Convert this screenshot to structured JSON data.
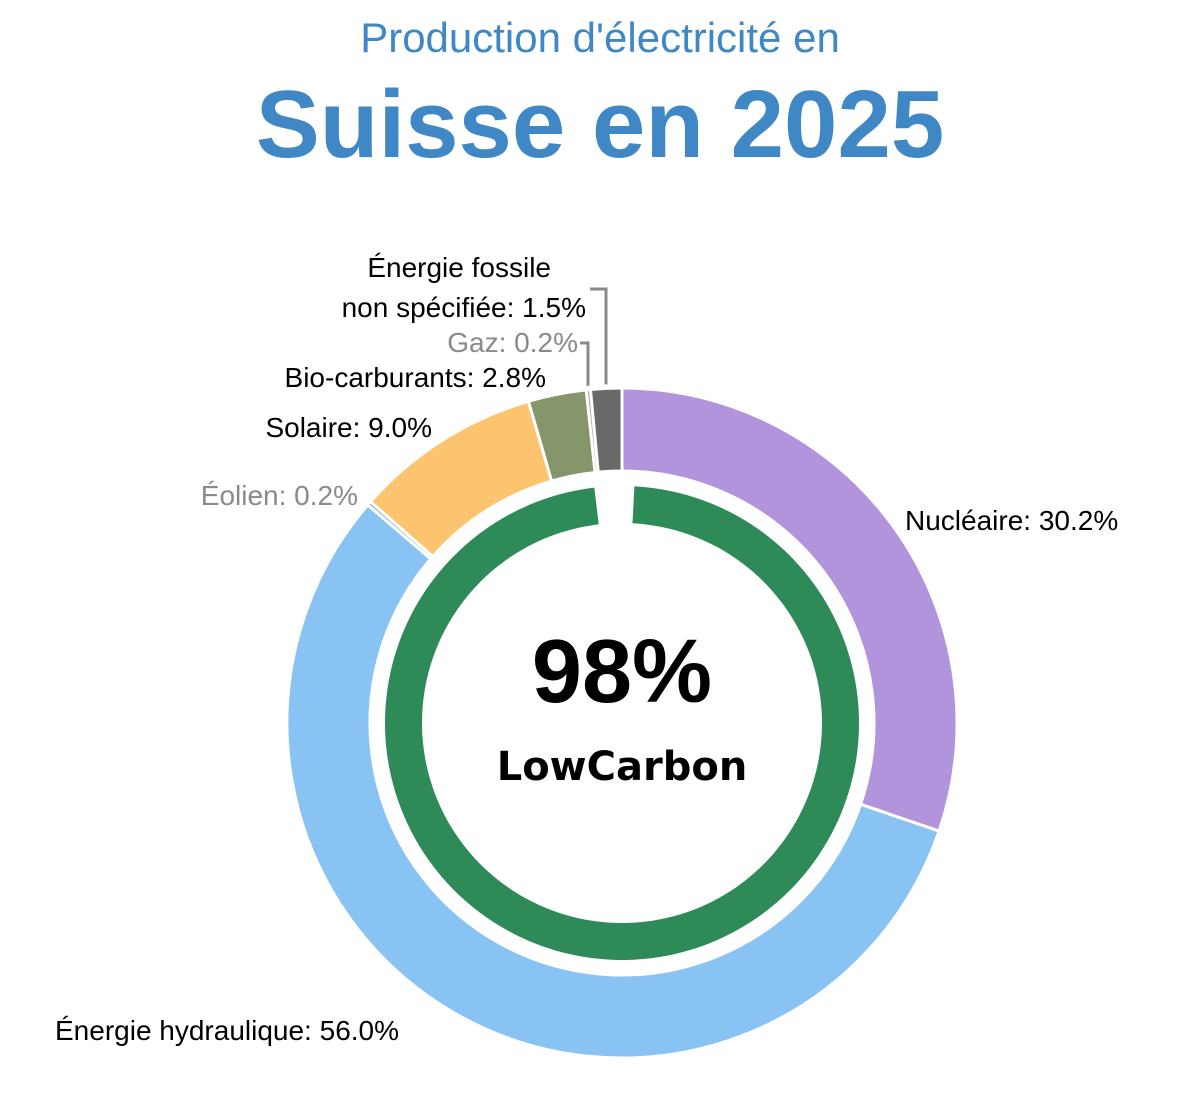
{
  "header": {
    "subtitle": "Production d'électricité en",
    "title": "Suisse en 2025"
  },
  "center": {
    "percent": "98%",
    "percent_color": "#2e8b57",
    "brand": "LowCarbon",
    "brand_color": "#2ecc85"
  },
  "chart_data": {
    "type": "pie",
    "style": "donut",
    "start": "top, clockwise",
    "slices": [
      {
        "name": "Nucléaire",
        "value": 30.2,
        "label": "Nucléaire: 30.2%",
        "color": "#b294dc",
        "label_color": "#000000"
      },
      {
        "name": "Énergie hydraulique",
        "value": 56.0,
        "label": "Énergie hydraulique: 56.0%",
        "color": "#89c3f3",
        "label_color": "#000000"
      },
      {
        "name": "Éolien",
        "value": 0.2,
        "label": "Éolien: 0.2%",
        "color": "#76b3d8",
        "label_color": "#8a8a8a"
      },
      {
        "name": "Solaire",
        "value": 9.0,
        "label": "Solaire: 9.0%",
        "color": "#fdc46f",
        "label_color": "#000000"
      },
      {
        "name": "Bio-carburants",
        "value": 2.8,
        "label": "Bio-carburants: 2.8%",
        "color": "#87956b",
        "label_color": "#000000"
      },
      {
        "name": "Gaz",
        "value": 0.2,
        "label": "Gaz: 0.2%",
        "color": "#a0a0a0",
        "label_color": "#8a8a8a"
      },
      {
        "name": "Énergie fossile non spécifiée",
        "value": 1.5,
        "label_lines": [
          "Énergie fossile",
          "non spécifiée: 1.5%"
        ],
        "color": "#696969",
        "label_color": "#000000"
      }
    ],
    "inner_ring": {
      "name": "LowCarbon",
      "value": 98,
      "color": "#2e8b57"
    }
  }
}
